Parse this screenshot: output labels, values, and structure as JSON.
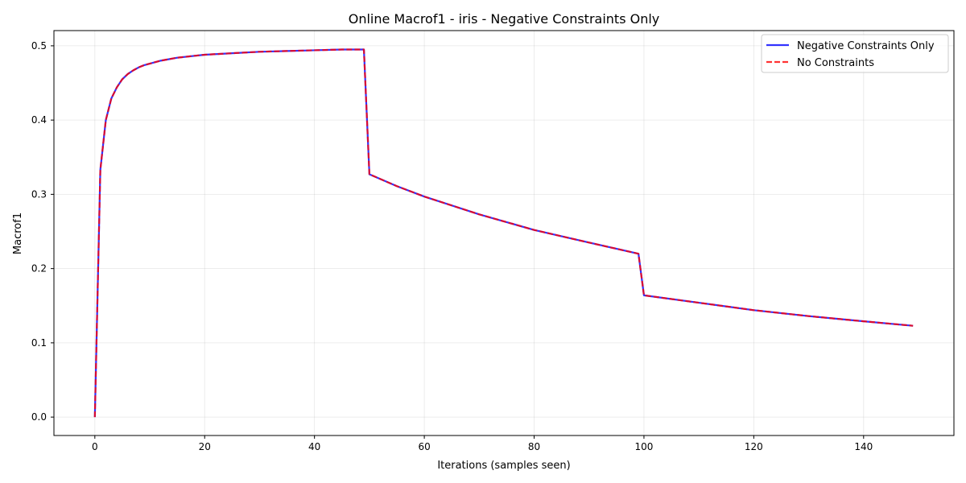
{
  "chart_data": {
    "type": "line",
    "title": "Online Macrof1 - iris - Negative Constraints Only",
    "xlabel": "Iterations (samples seen)",
    "ylabel": "Macrof1",
    "xlim": [
      -7.45,
      156.45
    ],
    "ylim": [
      -0.0248,
      0.5205
    ],
    "xticks": [
      0,
      20,
      40,
      60,
      80,
      100,
      120,
      140
    ],
    "yticks": [
      0.0,
      0.1,
      0.2,
      0.3,
      0.4,
      0.5
    ],
    "xtick_labels": [
      "0",
      "20",
      "40",
      "60",
      "80",
      "100",
      "120",
      "140"
    ],
    "ytick_labels": [
      "0.0",
      "0.1",
      "0.2",
      "0.3",
      "0.4",
      "0.5"
    ],
    "grid": true,
    "legend_position": "top-right",
    "series": [
      {
        "name": "Negative Constraints Only",
        "color": "#0000ff",
        "style": "solid",
        "x": [
          0,
          1,
          2,
          3,
          4,
          5,
          6,
          7,
          8,
          9,
          10,
          12,
          15,
          20,
          25,
          30,
          35,
          40,
          45,
          49,
          50,
          55,
          60,
          70,
          80,
          90,
          99,
          100,
          110,
          120,
          130,
          140,
          149
        ],
        "y": [
          0.0,
          0.333,
          0.4,
          0.429,
          0.444,
          0.455,
          0.462,
          0.467,
          0.471,
          0.474,
          0.476,
          0.48,
          0.484,
          0.488,
          0.49,
          0.492,
          0.493,
          0.494,
          0.495,
          0.495,
          0.327,
          0.311,
          0.297,
          0.273,
          0.252,
          0.235,
          0.22,
          0.164,
          0.154,
          0.144,
          0.136,
          0.129,
          0.123
        ]
      },
      {
        "name": "No Constraints",
        "color": "#ff0000",
        "style": "dashed",
        "x": [
          0,
          1,
          2,
          3,
          4,
          5,
          6,
          7,
          8,
          9,
          10,
          12,
          15,
          20,
          25,
          30,
          35,
          40,
          45,
          49,
          50,
          55,
          60,
          70,
          80,
          90,
          99,
          100,
          110,
          120,
          130,
          140,
          149
        ],
        "y": [
          0.0,
          0.333,
          0.4,
          0.429,
          0.444,
          0.455,
          0.462,
          0.467,
          0.471,
          0.474,
          0.476,
          0.48,
          0.484,
          0.488,
          0.49,
          0.492,
          0.493,
          0.494,
          0.495,
          0.495,
          0.327,
          0.311,
          0.297,
          0.273,
          0.252,
          0.235,
          0.22,
          0.164,
          0.154,
          0.144,
          0.136,
          0.129,
          0.123
        ]
      }
    ]
  }
}
